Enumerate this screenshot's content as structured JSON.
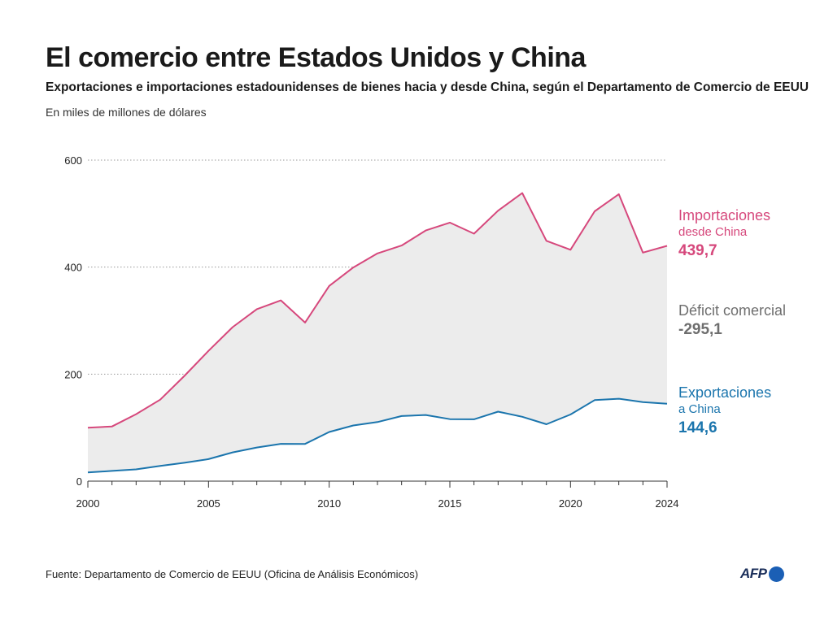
{
  "header": {
    "title": "El comercio entre Estados Unidos y China",
    "subtitle": "Exportaciones e importaciones estadounidenses de bienes hacia y desde China, según el Departamento de Comercio de EEUU",
    "unit": "En miles de millones de dólares"
  },
  "labels": {
    "imports": {
      "main": "Importaciones",
      "sub": "desde China",
      "value": "439,7"
    },
    "deficit": {
      "main": "Déficit comercial",
      "value": "-295,1"
    },
    "exports": {
      "main": "Exportaciones",
      "sub": "a China",
      "value": "144,6"
    }
  },
  "footer": {
    "source": "Fuente: Departamento de Comercio de EEUU (Oficina de Análisis Económicos)",
    "logo": "AFP"
  },
  "colors": {
    "imports": "#d6487c",
    "exports": "#1b75ad",
    "deficit_fill": "#ececec",
    "deficit_text": "#6e6e6e"
  },
  "chart_data": {
    "type": "area",
    "x": [
      2000,
      2001,
      2002,
      2003,
      2004,
      2005,
      2006,
      2007,
      2008,
      2009,
      2010,
      2011,
      2012,
      2013,
      2014,
      2015,
      2016,
      2017,
      2018,
      2019,
      2020,
      2021,
      2022,
      2023,
      2024
    ],
    "series": [
      {
        "name": "Importaciones desde China",
        "values": [
          100.0,
          102.3,
          125.2,
          152.4,
          196.7,
          243.5,
          287.8,
          321.4,
          337.8,
          296.4,
          364.9,
          399.4,
          425.6,
          440.4,
          468.5,
          483.2,
          462.6,
          505.5,
          538.5,
          449.1,
          432.5,
          504.3,
          536.3,
          427.2,
          439.7
        ]
      },
      {
        "name": "Exportaciones a China",
        "values": [
          16.2,
          19.2,
          22.1,
          28.4,
          34.4,
          41.2,
          53.7,
          62.9,
          69.7,
          69.5,
          91.9,
          104.1,
          110.5,
          121.7,
          123.7,
          115.9,
          115.6,
          129.9,
          120.3,
          106.4,
          124.5,
          151.4,
          154.0,
          147.8,
          144.6
        ]
      }
    ],
    "fill_between": "Déficit comercial",
    "y_ticks": [
      0,
      200,
      400,
      600
    ],
    "x_ticks": [
      2000,
      2005,
      2010,
      2015,
      2020,
      2024
    ],
    "xlim": [
      2000,
      2024
    ],
    "ylim": [
      0,
      600
    ],
    "grid": "horizontal dotted",
    "legend": "right, inline labels"
  }
}
